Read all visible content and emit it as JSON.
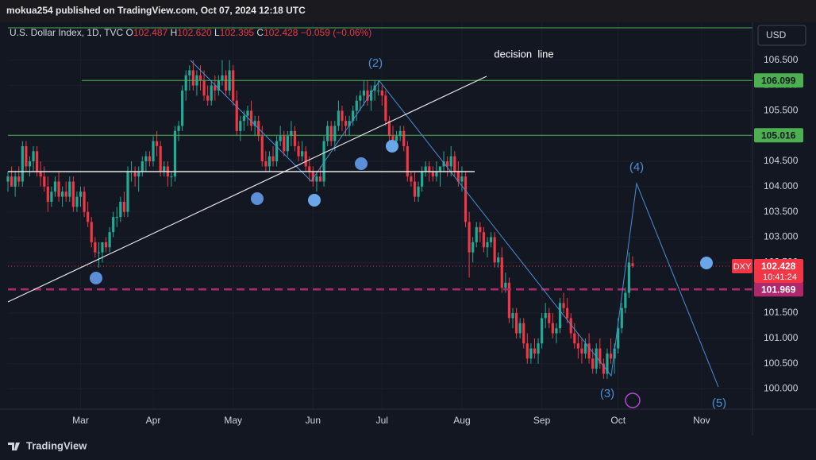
{
  "header": {
    "published": "mokua254 published on TradingView.com, Oct 07, 2024 12:18 UTC",
    "brand": "TradingView"
  },
  "chart_data": {
    "type": "candlestick",
    "legend": {
      "name": "U.S. Dollar Index, 1D, TVC",
      "o": "O",
      "open": "102.487",
      "h": "H",
      "high": "102.620",
      "l": "L",
      "low": "102.395",
      "c": "C",
      "close": "102.428",
      "change": "−0.059 (−0.06%)"
    },
    "currency": "USD",
    "up_color": "#22ab94",
    "down_color": "#f23645",
    "grid": true,
    "ohlc": [
      [
        104.1,
        104.3,
        103.9,
        104.2
      ],
      [
        104.2,
        104.4,
        104.0,
        104.0
      ],
      [
        104.0,
        104.3,
        103.8,
        104.2
      ],
      [
        104.2,
        104.4,
        104.0,
        104.1
      ],
      [
        104.1,
        104.9,
        104.0,
        104.8
      ],
      [
        104.8,
        104.9,
        104.3,
        104.4
      ],
      [
        104.4,
        104.6,
        104.2,
        104.5
      ],
      [
        104.5,
        104.8,
        104.3,
        104.7
      ],
      [
        104.7,
        104.8,
        104.2,
        104.3
      ],
      [
        104.3,
        104.5,
        104.0,
        104.2
      ],
      [
        104.2,
        104.4,
        103.9,
        104.0
      ],
      [
        104.0,
        104.2,
        103.5,
        103.7
      ],
      [
        103.7,
        104.0,
        103.6,
        103.9
      ],
      [
        103.9,
        104.2,
        103.8,
        104.1
      ],
      [
        104.1,
        104.3,
        103.7,
        103.8
      ],
      [
        103.8,
        104.0,
        103.6,
        103.9
      ],
      [
        103.9,
        104.1,
        103.7,
        103.8
      ],
      [
        103.8,
        104.2,
        103.7,
        104.1
      ],
      [
        104.1,
        104.2,
        103.5,
        103.6
      ],
      [
        103.6,
        103.9,
        103.5,
        103.8
      ],
      [
        103.8,
        104.0,
        103.6,
        103.9
      ],
      [
        103.9,
        104.0,
        103.4,
        103.5
      ],
      [
        103.5,
        103.7,
        103.2,
        103.3
      ],
      [
        103.3,
        103.4,
        102.8,
        102.9
      ],
      [
        102.9,
        103.0,
        102.6,
        102.7
      ],
      [
        102.7,
        102.9,
        102.4,
        102.7
      ],
      [
        102.7,
        102.9,
        102.5,
        102.9
      ],
      [
        102.9,
        103.0,
        102.7,
        102.8
      ],
      [
        102.8,
        103.2,
        102.7,
        103.1
      ],
      [
        103.1,
        103.5,
        103.0,
        103.4
      ],
      [
        103.4,
        103.6,
        103.2,
        103.4
      ],
      [
        103.4,
        103.8,
        103.3,
        103.7
      ],
      [
        103.7,
        103.9,
        103.4,
        103.5
      ],
      [
        103.5,
        104.4,
        103.4,
        104.3
      ],
      [
        104.3,
        104.5,
        104.1,
        104.3
      ],
      [
        104.3,
        104.4,
        104.0,
        104.2
      ],
      [
        104.2,
        104.4,
        103.9,
        104.3
      ],
      [
        104.3,
        104.6,
        104.2,
        104.5
      ],
      [
        104.5,
        104.7,
        104.3,
        104.6
      ],
      [
        104.6,
        104.7,
        104.4,
        104.5
      ],
      [
        104.5,
        105.0,
        104.4,
        104.9
      ],
      [
        104.9,
        105.1,
        104.6,
        104.8
      ],
      [
        104.8,
        104.9,
        104.2,
        104.3
      ],
      [
        104.3,
        104.5,
        104.2,
        104.4
      ],
      [
        104.4,
        104.5,
        104.0,
        104.2
      ],
      [
        104.2,
        104.3,
        104.0,
        104.2
      ],
      [
        104.2,
        105.2,
        104.1,
        105.1
      ],
      [
        105.1,
        105.3,
        104.9,
        105.2
      ],
      [
        105.2,
        106.0,
        105.1,
        105.9
      ],
      [
        105.9,
        106.3,
        105.7,
        106.2
      ],
      [
        106.2,
        106.4,
        105.9,
        106.3
      ],
      [
        106.3,
        106.5,
        105.9,
        106.0
      ],
      [
        106.0,
        106.3,
        105.8,
        106.2
      ],
      [
        106.2,
        106.4,
        105.9,
        106.1
      ],
      [
        106.1,
        106.3,
        105.7,
        105.8
      ],
      [
        105.8,
        106.0,
        105.6,
        105.7
      ],
      [
        105.7,
        106.1,
        105.6,
        106.0
      ],
      [
        106.0,
        106.2,
        105.7,
        105.9
      ],
      [
        105.9,
        106.2,
        105.8,
        106.1
      ],
      [
        106.1,
        106.5,
        106.0,
        106.2
      ],
      [
        106.2,
        106.3,
        105.8,
        105.9
      ],
      [
        105.9,
        106.5,
        105.8,
        106.3
      ],
      [
        106.3,
        106.4,
        105.6,
        105.7
      ],
      [
        105.7,
        105.9,
        105.0,
        105.1
      ],
      [
        105.1,
        105.4,
        104.9,
        105.3
      ],
      [
        105.3,
        105.5,
        105.1,
        105.4
      ],
      [
        105.4,
        105.6,
        105.2,
        105.5
      ],
      [
        105.5,
        105.7,
        105.1,
        105.2
      ],
      [
        105.2,
        105.4,
        105.0,
        105.3
      ],
      [
        105.3,
        105.4,
        104.9,
        105.0
      ],
      [
        105.0,
        105.2,
        104.4,
        104.5
      ],
      [
        104.5,
        104.7,
        104.3,
        104.4
      ],
      [
        104.4,
        104.7,
        104.3,
        104.6
      ],
      [
        104.6,
        104.8,
        104.4,
        104.5
      ],
      [
        104.5,
        105.0,
        104.4,
        104.9
      ],
      [
        104.9,
        105.2,
        104.8,
        105.0
      ],
      [
        105.0,
        105.1,
        104.6,
        104.7
      ],
      [
        104.7,
        105.1,
        104.6,
        105.0
      ],
      [
        105.0,
        105.3,
        104.8,
        105.1
      ],
      [
        105.1,
        105.2,
        104.7,
        104.8
      ],
      [
        104.8,
        104.9,
        104.5,
        104.6
      ],
      [
        104.6,
        104.9,
        104.5,
        104.7
      ],
      [
        104.7,
        104.8,
        104.3,
        104.4
      ],
      [
        104.4,
        104.6,
        104.1,
        104.3
      ],
      [
        104.3,
        104.4,
        104.0,
        104.1
      ],
      [
        104.1,
        104.3,
        103.9,
        104.2
      ],
      [
        104.2,
        104.4,
        104.1,
        104.1
      ],
      [
        104.1,
        105.0,
        104.0,
        104.9
      ],
      [
        104.9,
        105.3,
        104.8,
        105.2
      ],
      [
        105.2,
        105.3,
        104.8,
        104.9
      ],
      [
        104.9,
        105.3,
        104.7,
        105.2
      ],
      [
        105.2,
        105.7,
        105.1,
        105.5
      ],
      [
        105.5,
        105.6,
        105.1,
        105.3
      ],
      [
        105.3,
        105.4,
        105.0,
        105.2
      ],
      [
        105.2,
        105.4,
        105.0,
        105.3
      ],
      [
        105.3,
        105.6,
        105.2,
        105.5
      ],
      [
        105.5,
        105.8,
        105.3,
        105.7
      ],
      [
        105.7,
        105.9,
        105.5,
        105.8
      ],
      [
        105.8,
        106.1,
        105.6,
        105.9
      ],
      [
        105.9,
        106.1,
        105.6,
        105.7
      ],
      [
        105.7,
        106.0,
        105.5,
        105.9
      ],
      [
        105.9,
        106.1,
        105.7,
        106.0
      ],
      [
        105.9,
        106.1,
        105.8,
        105.9
      ],
      [
        105.9,
        106.0,
        105.6,
        105.8
      ],
      [
        105.8,
        105.9,
        105.2,
        105.3
      ],
      [
        105.3,
        105.4,
        104.9,
        105.0
      ],
      [
        105.0,
        105.2,
        104.8,
        104.9
      ],
      [
        104.9,
        105.1,
        104.8,
        105.0
      ],
      [
        105.0,
        105.2,
        104.9,
        105.1
      ],
      [
        105.1,
        105.2,
        104.7,
        104.8
      ],
      [
        104.8,
        104.9,
        104.1,
        104.2
      ],
      [
        104.2,
        104.3,
        104.0,
        104.1
      ],
      [
        104.1,
        104.3,
        103.7,
        103.8
      ],
      [
        103.8,
        104.1,
        103.7,
        104.0
      ],
      [
        104.0,
        104.4,
        103.9,
        104.3
      ],
      [
        104.3,
        104.5,
        104.2,
        104.4
      ],
      [
        104.4,
        104.5,
        104.1,
        104.3
      ],
      [
        104.3,
        104.4,
        104.1,
        104.2
      ],
      [
        104.2,
        104.5,
        104.1,
        104.3
      ],
      [
        104.3,
        104.4,
        104.0,
        104.4
      ],
      [
        104.4,
        104.7,
        104.3,
        104.5
      ],
      [
        104.5,
        104.6,
        104.2,
        104.4
      ],
      [
        104.4,
        104.8,
        104.2,
        104.6
      ],
      [
        104.6,
        104.7,
        104.2,
        104.3
      ],
      [
        104.3,
        104.5,
        104.0,
        104.1
      ],
      [
        104.1,
        104.4,
        103.9,
        104.2
      ],
      [
        104.2,
        104.3,
        103.2,
        103.3
      ],
      [
        103.3,
        103.5,
        102.2,
        102.7
      ],
      [
        102.7,
        103.0,
        102.5,
        102.9
      ],
      [
        102.9,
        103.3,
        102.8,
        103.2
      ],
      [
        103.2,
        103.3,
        102.9,
        103.1
      ],
      [
        103.1,
        103.2,
        102.7,
        102.8
      ],
      [
        102.8,
        103.0,
        102.6,
        102.9
      ],
      [
        102.9,
        103.1,
        102.8,
        103.0
      ],
      [
        103.0,
        103.1,
        102.4,
        102.5
      ],
      [
        102.5,
        102.7,
        102.4,
        102.6
      ],
      [
        102.6,
        102.8,
        101.9,
        102.0
      ],
      [
        102.0,
        102.3,
        101.9,
        102.1
      ],
      [
        102.1,
        102.2,
        101.3,
        101.4
      ],
      [
        101.4,
        101.6,
        101.2,
        101.5
      ],
      [
        101.5,
        101.6,
        101.0,
        101.1
      ],
      [
        101.1,
        101.4,
        101.0,
        101.3
      ],
      [
        101.3,
        101.4,
        100.8,
        100.9
      ],
      [
        100.9,
        101.1,
        100.5,
        100.6
      ],
      [
        100.6,
        100.9,
        100.5,
        100.8
      ],
      [
        100.8,
        101.0,
        100.6,
        100.7
      ],
      [
        100.7,
        101.0,
        100.5,
        100.9
      ],
      [
        100.9,
        101.5,
        100.8,
        101.4
      ],
      [
        101.4,
        101.7,
        101.2,
        101.5
      ],
      [
        101.5,
        101.6,
        101.2,
        101.3
      ],
      [
        101.3,
        101.5,
        101.0,
        101.1
      ],
      [
        101.1,
        101.3,
        100.9,
        101.2
      ],
      [
        101.2,
        101.8,
        101.1,
        101.7
      ],
      [
        101.7,
        101.9,
        101.5,
        101.6
      ],
      [
        101.6,
        101.8,
        101.3,
        101.4
      ],
      [
        101.4,
        101.5,
        101.0,
        101.1
      ],
      [
        101.1,
        101.3,
        100.8,
        100.9
      ],
      [
        100.9,
        101.1,
        100.6,
        100.8
      ],
      [
        100.8,
        101.0,
        100.5,
        100.7
      ],
      [
        100.7,
        101.0,
        100.6,
        100.9
      ],
      [
        100.9,
        101.1,
        100.5,
        100.6
      ],
      [
        100.6,
        100.8,
        100.3,
        100.4
      ],
      [
        100.4,
        100.9,
        100.3,
        100.8
      ],
      [
        100.8,
        101.0,
        100.4,
        100.5
      ],
      [
        100.5,
        100.6,
        100.2,
        100.3
      ],
      [
        100.3,
        100.8,
        100.2,
        100.7
      ],
      [
        100.7,
        101.0,
        100.5,
        100.6
      ],
      [
        100.6,
        100.9,
        100.3,
        100.8
      ],
      [
        100.8,
        101.4,
        100.7,
        101.2
      ],
      [
        101.2,
        101.7,
        101.1,
        101.6
      ],
      [
        101.6,
        102.0,
        101.5,
        101.9
      ],
      [
        101.9,
        102.7,
        101.8,
        102.5
      ],
      [
        102.487,
        102.62,
        102.395,
        102.428
      ]
    ],
    "xlim": [
      0,
      205
    ],
    "xticks": [
      {
        "value": 20,
        "label": "Mar"
      },
      {
        "value": 40,
        "label": "Apr"
      },
      {
        "value": 62,
        "label": "May"
      },
      {
        "value": 84,
        "label": "Jun"
      },
      {
        "value": 103,
        "label": "Jul"
      },
      {
        "value": 125,
        "label": "Aug"
      },
      {
        "value": 147,
        "label": "Sep"
      },
      {
        "value": 168,
        "label": "Oct"
      },
      {
        "value": 191,
        "label": "Nov"
      }
    ],
    "ylim": [
      99.6,
      107.25
    ],
    "yticks": [
      {
        "value": 100,
        "label": "100.000"
      },
      {
        "value": 100.5,
        "label": "100.500"
      },
      {
        "value": 101,
        "label": "101.000"
      },
      {
        "value": 101.5,
        "label": "101.500"
      },
      {
        "value": 102,
        "label": "102.000"
      },
      {
        "value": 102.5,
        "label": "102.500"
      },
      {
        "value": 103,
        "label": "103.000"
      },
      {
        "value": 103.5,
        "label": "103.500"
      },
      {
        "value": 104,
        "label": "104.000"
      },
      {
        "value": 104.5,
        "label": "104.500"
      },
      {
        "value": 105,
        "label": "105.000"
      },
      {
        "value": 105.5,
        "label": "105.500"
      },
      {
        "value": 106,
        "label": "106.000"
      },
      {
        "value": 106.5,
        "label": "106.500"
      }
    ],
    "levels": [
      {
        "value": 106.099,
        "color": "#4caf50"
      },
      {
        "value": 105.016,
        "color": "#4caf50"
      },
      {
        "value": 101.969,
        "color": "#b0286b"
      }
    ],
    "last_price": {
      "symbol": "DXY",
      "value": 102.428,
      "timer": "10:41:24",
      "color": "#f23645"
    },
    "annotations": {
      "wave2": "(2)",
      "wave3": "(3)",
      "wave4": "(4)",
      "wave5": "(5)",
      "decision": "decision  line"
    }
  }
}
